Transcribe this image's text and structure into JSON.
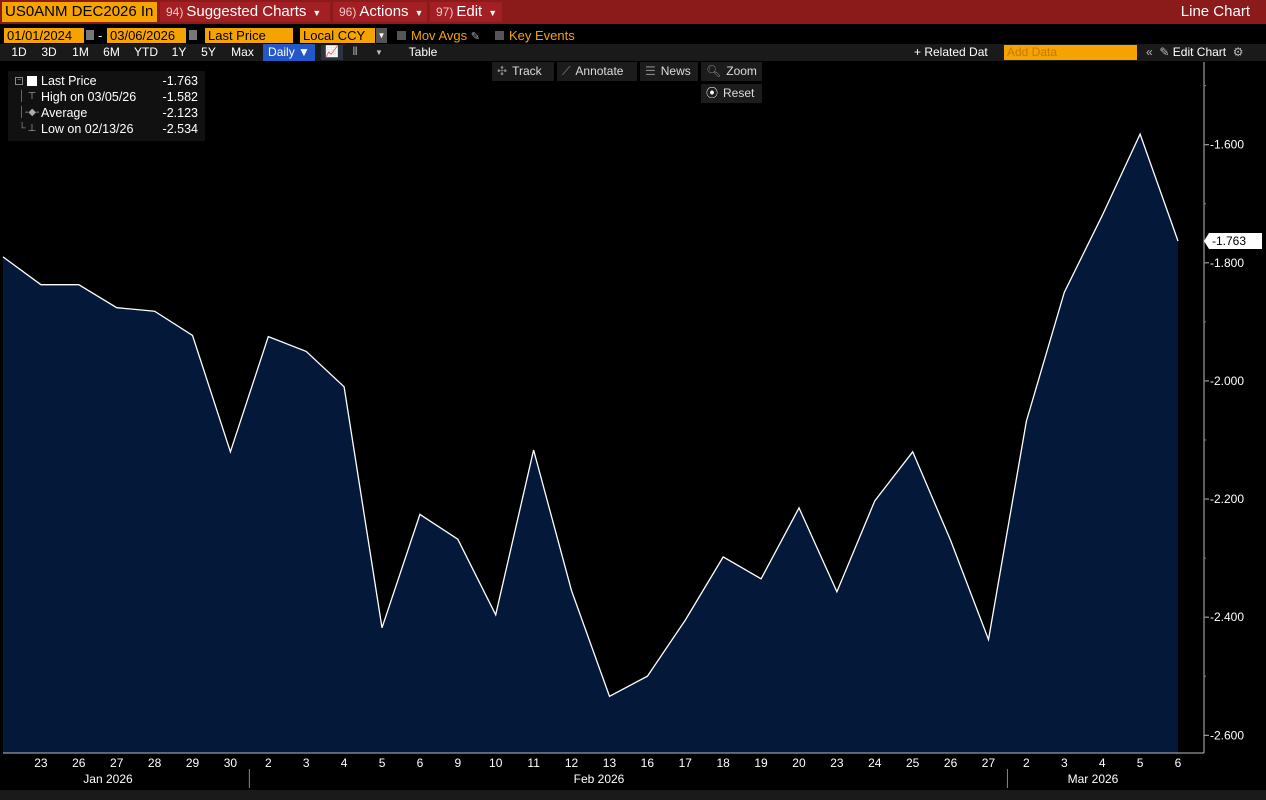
{
  "topbar": {
    "ticker": "US0ANM DEC2026 In",
    "menus": [
      {
        "num": "94)",
        "label": "Suggested Charts"
      },
      {
        "num": "96)",
        "label": "Actions"
      },
      {
        "num": "97)",
        "label": "Edit"
      }
    ],
    "chart_type_label": "Line Chart"
  },
  "controls": {
    "start_date": "01/01/2024",
    "end_date": "03/06/2026",
    "field": "Last Price",
    "currency": "Local CCY",
    "mov_avgs": "Mov Avgs",
    "key_events": "Key Events"
  },
  "ranges": [
    "1D",
    "3D",
    "1M",
    "6M",
    "YTD",
    "1Y",
    "5Y",
    "Max"
  ],
  "frequency": "Daily",
  "table_label": "Table",
  "related_label": "+ Related Dat",
  "add_data_placeholder": "Add Data",
  "edit_chart_label": "Edit Chart",
  "tools": {
    "track": "Track",
    "annotate": "Annotate",
    "news": "News",
    "zoom": "Zoom",
    "reset": "Reset"
  },
  "legend": [
    {
      "label": "Last Price",
      "value": "-1.763"
    },
    {
      "label": "High on 03/05/26",
      "value": "-1.582"
    },
    {
      "label": "Average",
      "value": "-2.123"
    },
    {
      "label": "Low on 02/13/26",
      "value": "-2.534"
    }
  ],
  "colors": {
    "fill": "#04193a",
    "line": "#ffffff",
    "topbar": "#8b1a1a",
    "accent": "#f5a300"
  },
  "chart_data": {
    "type": "area",
    "title": "",
    "xlabel": "",
    "ylabel": "",
    "last_label": "-1.763",
    "ylim": [
      -2.63,
      -1.46
    ],
    "yticks": [
      -1.6,
      -1.8,
      -2.0,
      -2.2,
      -2.4,
      -2.6
    ],
    "ytick_labels": [
      "-1.600",
      "-1.800",
      "-2.000",
      "-2.200",
      "-2.400",
      "-2.600"
    ],
    "x": [
      "2026-01-22",
      "2026-01-23",
      "2026-01-26",
      "2026-01-27",
      "2026-01-28",
      "2026-01-29",
      "2026-01-30",
      "2026-02-02",
      "2026-02-03",
      "2026-02-04",
      "2026-02-05",
      "2026-02-06",
      "2026-02-09",
      "2026-02-10",
      "2026-02-11",
      "2026-02-12",
      "2026-02-13",
      "2026-02-16",
      "2026-02-17",
      "2026-02-18",
      "2026-02-19",
      "2026-02-20",
      "2026-02-23",
      "2026-02-24",
      "2026-02-25",
      "2026-02-26",
      "2026-02-27",
      "2026-03-02",
      "2026-03-03",
      "2026-03-04",
      "2026-03-05",
      "2026-03-06"
    ],
    "values": [
      -1.79,
      -1.837,
      -1.837,
      -1.876,
      -1.882,
      -1.923,
      -2.12,
      -1.925,
      -1.95,
      -2.01,
      -2.418,
      -2.226,
      -2.268,
      -2.396,
      -2.117,
      -2.355,
      -2.534,
      -2.5,
      -2.405,
      -2.298,
      -2.335,
      -2.215,
      -2.357,
      -2.203,
      -2.12,
      -2.27,
      -2.438,
      -2.068,
      -1.85,
      -1.72,
      -1.582,
      -1.763
    ],
    "day_tick_labels": [
      "23",
      "26",
      "27",
      "28",
      "29",
      "30",
      "2",
      "3",
      "4",
      "5",
      "6",
      "9",
      "10",
      "11",
      "12",
      "13",
      "16",
      "17",
      "18",
      "19",
      "20",
      "23",
      "24",
      "25",
      "26",
      "27",
      "2",
      "3",
      "4",
      "5",
      "6"
    ],
    "month_labels": [
      "Jan 2026",
      "Feb 2026",
      "Mar 2026"
    ]
  }
}
